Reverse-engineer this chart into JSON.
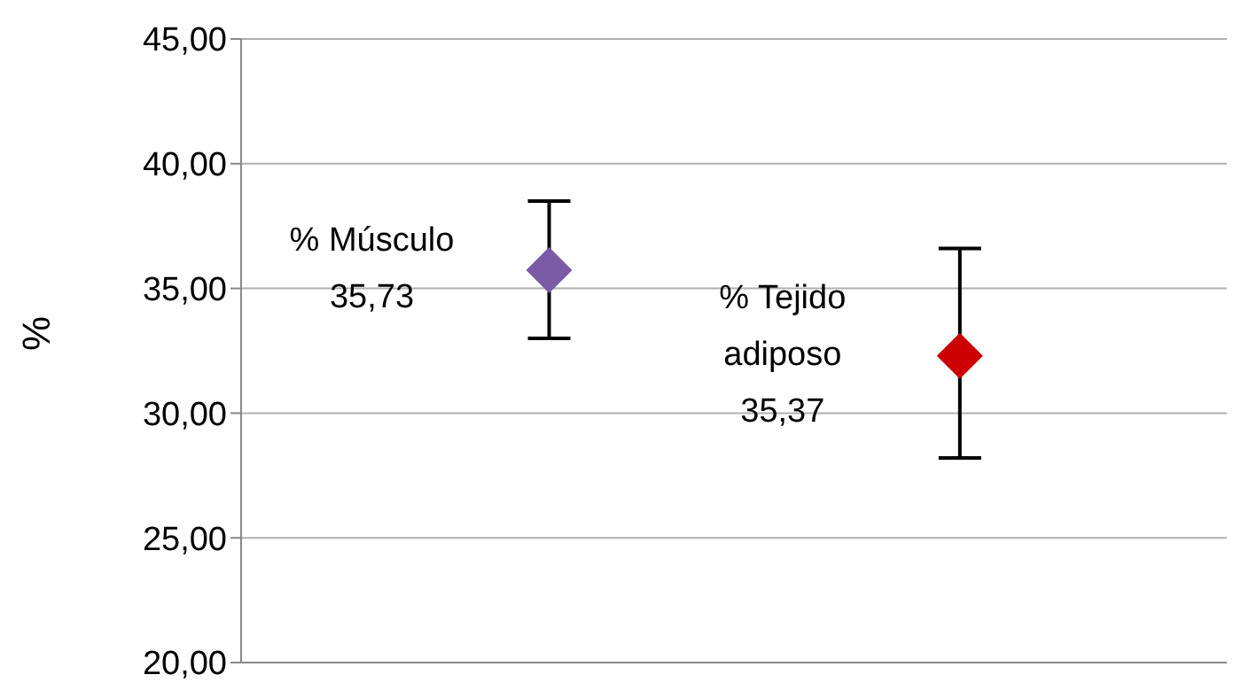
{
  "chart_data": {
    "type": "scatter",
    "ylabel": "%",
    "categories": [
      null,
      null
    ],
    "values": [
      35.73,
      32.3
    ],
    "colors": [
      "#7b5aa6",
      "#cc0000"
    ],
    "errors": [
      [
        33.0,
        38.5
      ],
      [
        28.2,
        36.6
      ]
    ],
    "marker": "diamond",
    "annotations": [
      "% Músculo\n35,73",
      "% Tejido\nadiposo\n35,37"
    ],
    "ylim": [
      20,
      45
    ],
    "yticks": [
      {
        "value": 20,
        "label": "20,00"
      },
      {
        "value": 25,
        "label": "25,00"
      },
      {
        "value": 30,
        "label": "30,00"
      },
      {
        "value": 35,
        "label": "35,00"
      },
      {
        "value": 40,
        "label": "40,00"
      },
      {
        "value": 45,
        "label": "45,00"
      }
    ],
    "grid": "y"
  }
}
